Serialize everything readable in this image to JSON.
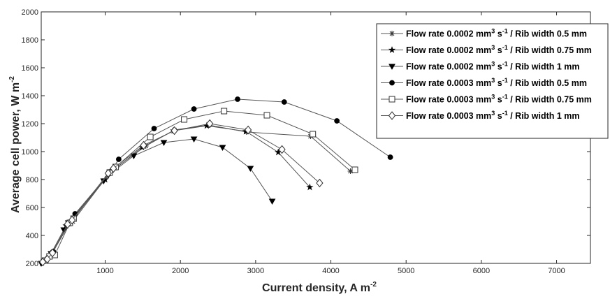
{
  "chart_data": {
    "type": "line",
    "xlabel": "Current density, A m",
    "xlabel_sup": "-2",
    "ylabel": "Average cell power, W m",
    "ylabel_sup": "-2",
    "xlim": [
      150,
      7450
    ],
    "ylim": [
      200,
      2000
    ],
    "xticks": [
      1000,
      2000,
      3000,
      4000,
      5000,
      6000,
      7000
    ],
    "yticks": [
      200,
      400,
      600,
      800,
      1000,
      1200,
      1400,
      1600,
      1800,
      2000
    ],
    "grid": false,
    "legend_position": "top-right",
    "series": [
      {
        "name": "Flow rate 0.0002 mm",
        "legend_sup": "3",
        "legend_unit": " s",
        "legend_sup2": "-1",
        "legend_tail": " / Rib width 0.5 mm",
        "marker": "asterisk",
        "x": [
          170,
          230,
          300,
          520,
          570,
          1050,
          1130,
          1540,
          1920,
          2380,
          2880,
          3730,
          4260
        ],
        "y": [
          212,
          232,
          280,
          480,
          500,
          840,
          880,
          1040,
          1155,
          1190,
          1140,
          1110,
          860
        ]
      },
      {
        "name": "Flow rate 0.0002 mm",
        "legend_sup": "3",
        "legend_unit": " s",
        "legend_sup2": "-1",
        "legend_tail": " / Rib width 0.75 mm",
        "marker": "star",
        "x": [
          160,
          220,
          290,
          480,
          530,
          1000,
          1070,
          1490,
          1910,
          2350,
          2870,
          3300,
          3720
        ],
        "y": [
          205,
          225,
          275,
          470,
          495,
          800,
          850,
          1030,
          1150,
          1185,
          1145,
          995,
          745
        ]
      },
      {
        "name": "Flow rate 0.0002 mm",
        "legend_sup": "3",
        "legend_unit": " s",
        "legend_sup2": "-1",
        "legend_tail": " / Rib width 1 mm",
        "marker": "triangle-down",
        "x": [
          150,
          210,
          280,
          450,
          510,
          980,
          1040,
          1380,
          1780,
          2180,
          2560,
          2930,
          3220
        ],
        "y": [
          200,
          220,
          270,
          440,
          490,
          790,
          830,
          970,
          1065,
          1090,
          1030,
          880,
          645
        ]
      },
      {
        "name": "Flow rate 0.0003 mm",
        "legend_sup": "3",
        "legend_unit": " s",
        "legend_sup2": "-1",
        "legend_tail": " / Rib width 0.5 mm",
        "marker": "circle",
        "x": [
          180,
          240,
          310,
          540,
          600,
          1080,
          1180,
          1650,
          2180,
          2760,
          3380,
          4080,
          4790
        ],
        "y": [
          215,
          240,
          285,
          500,
          555,
          860,
          945,
          1165,
          1305,
          1375,
          1355,
          1220,
          960
        ]
      },
      {
        "name": "Flow rate 0.0003 mm",
        "legend_sup": "3",
        "legend_unit": " s",
        "legend_sup2": "-1",
        "legend_tail": " / Rib width 0.75 mm",
        "marker": "square",
        "x": [
          200,
          260,
          330,
          530,
          580,
          1060,
          1140,
          1600,
          2050,
          2580,
          3150,
          3760,
          4320
        ],
        "y": [
          220,
          250,
          260,
          490,
          520,
          850,
          890,
          1105,
          1230,
          1290,
          1260,
          1125,
          870
        ]
      },
      {
        "name": "Flow rate 0.0003 mm",
        "legend_sup": "3",
        "legend_unit": " s",
        "legend_sup2": "-1",
        "legend_tail": " / Rib width 1 mm",
        "marker": "diamond",
        "x": [
          170,
          230,
          300,
          500,
          560,
          1040,
          1110,
          1510,
          1920,
          2390,
          2900,
          3350,
          3850
        ],
        "y": [
          210,
          230,
          275,
          480,
          510,
          845,
          880,
          1045,
          1150,
          1200,
          1155,
          1015,
          775
        ]
      }
    ]
  }
}
